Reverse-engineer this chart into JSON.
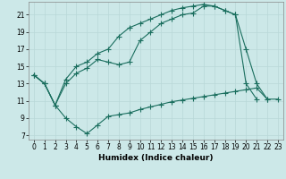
{
  "xlabel": "Humidex (Indice chaleur)",
  "bg_color": "#cce8e8",
  "line_color": "#1a6e5e",
  "grid_color": "#b8d8d8",
  "xlim": [
    -0.5,
    23.5
  ],
  "ylim": [
    6.5,
    22.5
  ],
  "yticks": [
    7,
    9,
    11,
    13,
    15,
    17,
    19,
    21
  ],
  "xticks": [
    0,
    1,
    2,
    3,
    4,
    5,
    6,
    7,
    8,
    9,
    10,
    11,
    12,
    13,
    14,
    15,
    16,
    17,
    18,
    19,
    20,
    21,
    22,
    23
  ],
  "series": [
    {
      "x": [
        0,
        1,
        2,
        3,
        4,
        5,
        6,
        7,
        8,
        9,
        10,
        11,
        12,
        13,
        14,
        15,
        16,
        17,
        18,
        19,
        20,
        21,
        22,
        23
      ],
      "y": [
        14.0,
        13.0,
        10.5,
        9.0,
        8.0,
        7.2,
        8.2,
        9.2,
        9.4,
        9.6,
        10.0,
        10.3,
        10.6,
        10.9,
        11.1,
        11.3,
        11.5,
        11.7,
        11.9,
        12.1,
        12.3,
        12.5,
        11.2,
        11.2
      ]
    },
    {
      "x": [
        0,
        1,
        2,
        3,
        4,
        5,
        6,
        7,
        8,
        9,
        10,
        11,
        12,
        13,
        14,
        15,
        16,
        17,
        18,
        19,
        20,
        21,
        22
      ],
      "y": [
        14.0,
        13.0,
        10.5,
        13.0,
        14.2,
        14.8,
        15.8,
        15.5,
        15.2,
        15.5,
        18.0,
        19.0,
        20.0,
        20.5,
        21.0,
        21.2,
        22.0,
        22.0,
        21.5,
        21.0,
        17.0,
        13.0,
        11.2
      ]
    },
    {
      "x": [
        0,
        1,
        2,
        3,
        4,
        5,
        6,
        7,
        8,
        9,
        10,
        11,
        12,
        13,
        14,
        15,
        16,
        17,
        18,
        19,
        20,
        21
      ],
      "y": [
        14.0,
        13.0,
        10.5,
        13.5,
        15.0,
        15.5,
        16.5,
        17.0,
        18.5,
        19.5,
        20.0,
        20.5,
        21.0,
        21.5,
        21.8,
        22.0,
        22.2,
        22.0,
        21.5,
        21.0,
        13.0,
        11.2
      ]
    }
  ],
  "marker": "+",
  "markersize": 4,
  "linewidth": 0.8,
  "tick_labelsize": 5.5,
  "xlabel_fontsize": 6.5
}
